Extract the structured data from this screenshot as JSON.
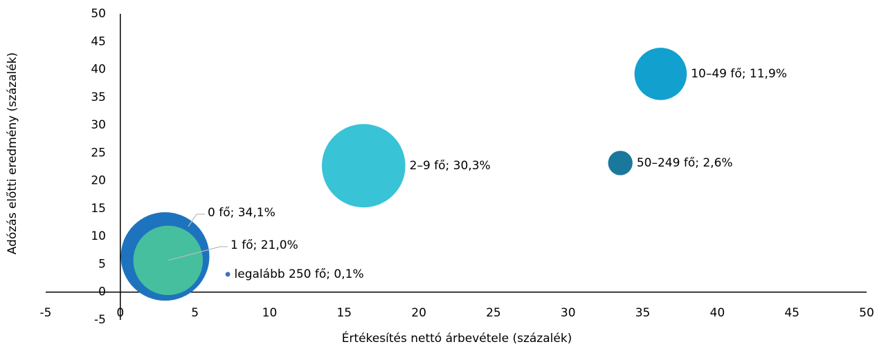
{
  "chart_data": {
    "type": "scatter",
    "x_label": "Értékesítés nettó árbevétele (százalék)",
    "y_label": "Adózás előtti eredmény (százalék)",
    "x": [
      3.0,
      3.2,
      7.2,
      16.3,
      36.2,
      33.5
    ],
    "values": [
      6.4,
      5.7,
      3.2,
      22.7,
      39.2,
      23.2
    ],
    "sizes": [
      34.1,
      21.0,
      0.1,
      30.3,
      11.9,
      2.6
    ],
    "value_labels": [
      "0 fő; 34,1%",
      "1 fő; 21,0%",
      "legalább 250 fő; 0,1%",
      "2–9 fő; 30,3%",
      "10–49 fő; 11,9%",
      "50–249 fő; 2,6%"
    ],
    "colors": [
      "#1e73be",
      "#45bf9e",
      "#4a6fb5",
      "#38c3d6",
      "#12a0cf",
      "#1a789c"
    ],
    "xlim": [
      -5,
      50
    ],
    "ylim": [
      -5,
      50
    ],
    "xticks": [
      -5,
      0,
      5,
      10,
      15,
      20,
      25,
      30,
      35,
      40,
      45,
      50
    ],
    "yticks": [
      -5,
      0,
      5,
      10,
      15,
      20,
      25,
      30,
      35,
      40,
      45,
      50
    ],
    "grid": false
  }
}
